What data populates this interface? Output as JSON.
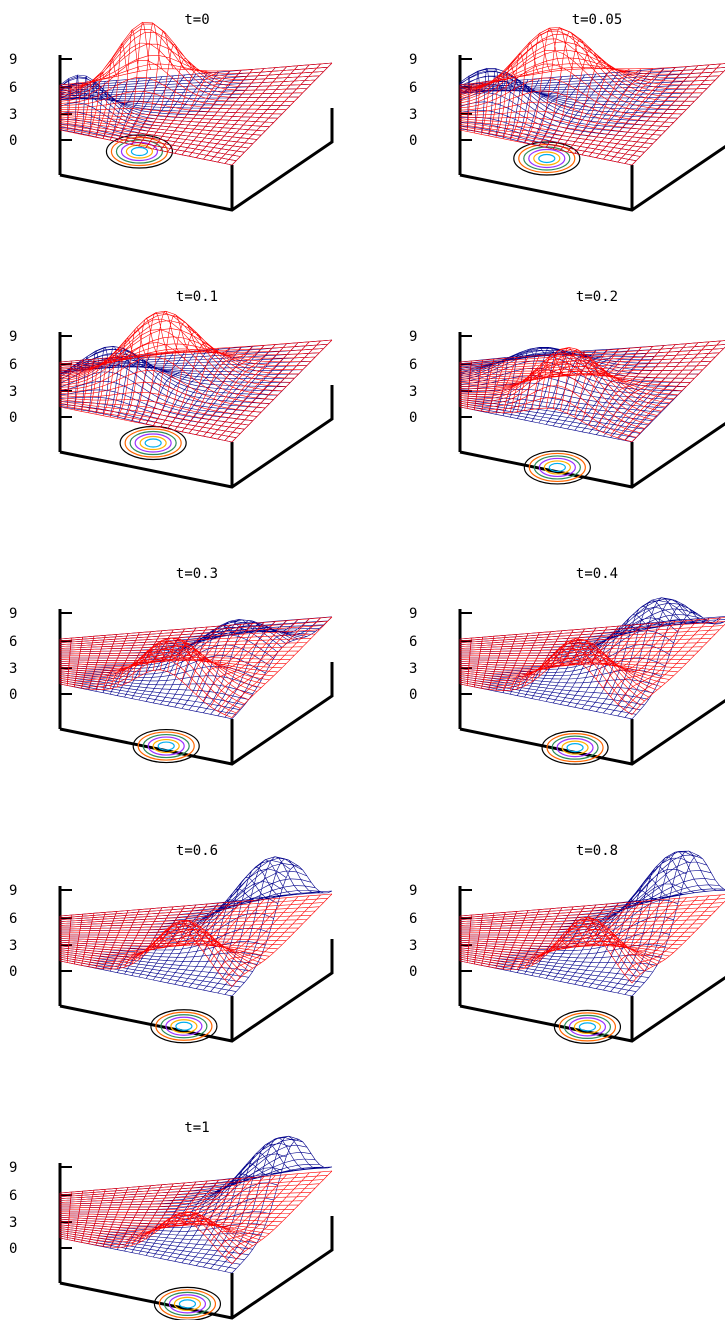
{
  "chart_data": [
    {
      "type": "surface",
      "title": "t=0",
      "z_ticks": [
        "9",
        "6",
        "3",
        "0"
      ],
      "zlim": [
        0,
        9
      ],
      "t": 0,
      "red_peak": {
        "x": 0.35,
        "y": 0.75,
        "height": 8.0
      },
      "blue_peak": {
        "x": 0.1,
        "y": 0.35,
        "height": 4.5
      }
    },
    {
      "type": "surface",
      "title": "t=0.05",
      "z_ticks": [
        "9",
        "6",
        "3",
        "0"
      ],
      "zlim": [
        0,
        9
      ],
      "t": 0.05,
      "red_peak": {
        "x": 0.4,
        "y": 0.65,
        "height": 8.0
      },
      "blue_peak": {
        "x": 0.15,
        "y": 0.4,
        "height": 5.0
      }
    },
    {
      "type": "surface",
      "title": "t=0.1",
      "z_ticks": [
        "9",
        "6",
        "3",
        "0"
      ],
      "zlim": [
        0,
        9
      ],
      "t": 0.1,
      "red_peak": {
        "x": 0.45,
        "y": 0.55,
        "height": 8.0
      },
      "blue_peak": {
        "x": 0.25,
        "y": 0.4,
        "height": 5.0
      }
    },
    {
      "type": "surface",
      "title": "t=0.2",
      "z_ticks": [
        "9",
        "6",
        "3",
        "0"
      ],
      "zlim": [
        0,
        9
      ],
      "t": 0.2,
      "red_peak": {
        "x": 0.55,
        "y": 0.25,
        "height": 6.5
      },
      "blue_peak": {
        "x": 0.35,
        "y": 0.6,
        "height": 3.5
      }
    },
    {
      "type": "surface",
      "title": "t=0.3",
      "z_ticks": [
        "9",
        "6",
        "3",
        "0"
      ],
      "zlim": [
        0,
        9
      ],
      "t": 0.3,
      "red_peak": {
        "x": 0.6,
        "y": 0.15,
        "height": 6.0
      },
      "blue_peak": {
        "x": 0.8,
        "y": 0.5,
        "height": 5.0
      }
    },
    {
      "type": "surface",
      "title": "t=0.4",
      "z_ticks": [
        "9",
        "6",
        "3",
        "0"
      ],
      "zlim": [
        0,
        9
      ],
      "t": 0.4,
      "red_peak": {
        "x": 0.65,
        "y": 0.1,
        "height": 6.5
      },
      "blue_peak": {
        "x": 0.88,
        "y": 0.55,
        "height": 7.0
      }
    },
    {
      "type": "surface",
      "title": "t=0.6",
      "z_ticks": [
        "9",
        "6",
        "3",
        "0"
      ],
      "zlim": [
        0,
        9
      ],
      "t": 0.6,
      "red_peak": {
        "x": 0.7,
        "y": 0.06,
        "height": 6.5
      },
      "blue_peak": {
        "x": 0.92,
        "y": 0.6,
        "height": 8.5
      }
    },
    {
      "type": "surface",
      "title": "t=0.8",
      "z_ticks": [
        "9",
        "6",
        "3",
        "0"
      ],
      "zlim": [
        0,
        9
      ],
      "t": 0.8,
      "red_peak": {
        "x": 0.72,
        "y": 0.05,
        "height": 7.0
      },
      "blue_peak": {
        "x": 0.94,
        "y": 0.62,
        "height": 9.0
      }
    },
    {
      "type": "surface",
      "title": "t=1",
      "z_ticks": [
        "9",
        "6",
        "3",
        "0"
      ],
      "zlim": [
        0,
        9
      ],
      "t": 1,
      "red_peak": {
        "x": 0.72,
        "y": 0.05,
        "height": 5.0
      },
      "blue_peak": {
        "x": 0.95,
        "y": 0.62,
        "height": 8.0
      }
    }
  ],
  "colors": {
    "red_surface": "#ff0000",
    "blue_surface": "#00008b",
    "axes": "#000000",
    "contours": [
      "#00aeef",
      "#ffb000",
      "#9b30ff",
      "#2e8b57",
      "#ff6600",
      "#000000"
    ]
  }
}
